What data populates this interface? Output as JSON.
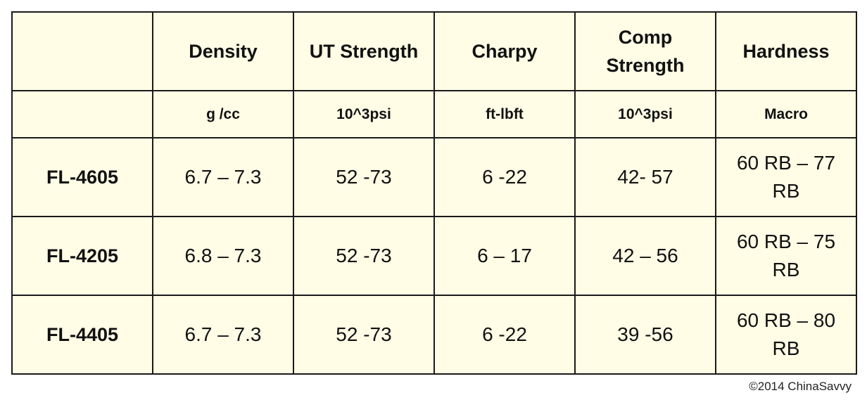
{
  "table": {
    "columns": [
      "",
      "Density",
      "UT Strength",
      "Charpy",
      "Comp Strength",
      "Hardness"
    ],
    "units": [
      "",
      "g /cc",
      "10^3psi",
      "ft-lbft",
      "10^3psi",
      "Macro"
    ],
    "rows": [
      {
        "grade": "FL-4605",
        "values": [
          "6.7 – 7.3",
          "52 -73",
          "6 -22",
          "42- 57",
          "60 RB – 77 RB"
        ]
      },
      {
        "grade": "FL-4205",
        "values": [
          "6.8 – 7.3",
          "52 -73",
          "6 – 17",
          "42 – 56",
          "60 RB – 75 RB"
        ]
      },
      {
        "grade": "FL-4405",
        "values": [
          "6.7 – 7.3",
          "52 -73",
          "6 -22",
          "39 -56",
          "60 RB – 80 RB"
        ]
      }
    ]
  },
  "copyright": "©2014 ChinaSavvy",
  "colors": {
    "cell_background": "#fffde6",
    "border": "#1a1a1a",
    "text": "#111111"
  }
}
